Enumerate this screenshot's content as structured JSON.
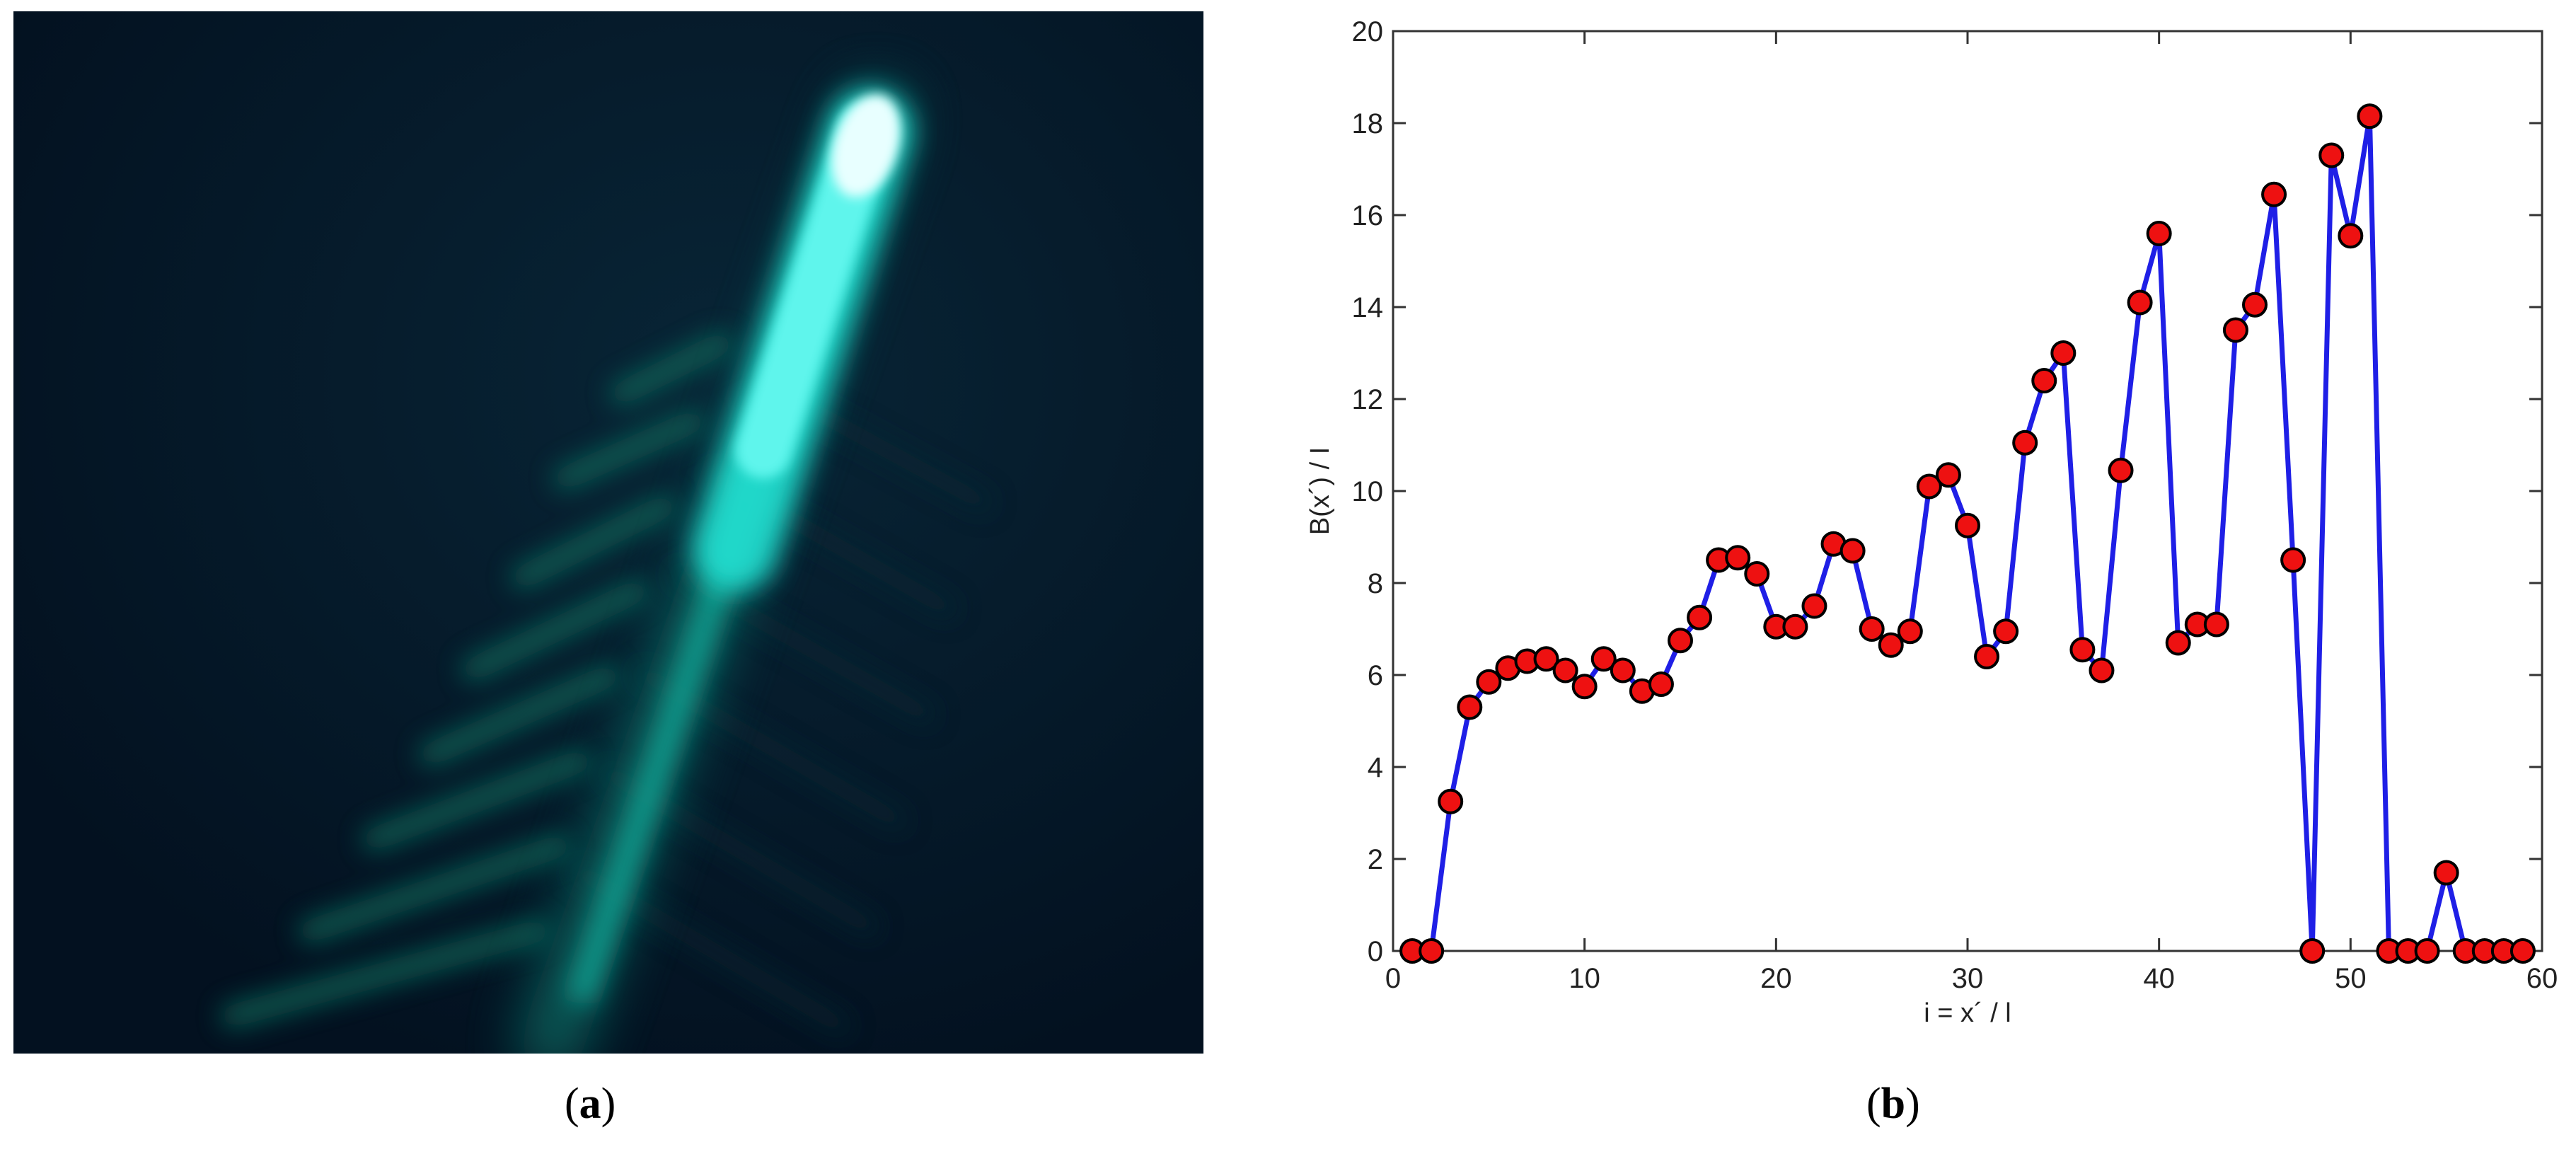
{
  "panels": {
    "a": {
      "label_open": "(",
      "label_letter": "a",
      "label_close": ")"
    },
    "b": {
      "label_open": "(",
      "label_letter": "b",
      "label_close": ")"
    }
  },
  "chart_data": {
    "type": "line",
    "title": "",
    "xlabel": "i = x´ / l",
    "ylabel": "B(x´) / I",
    "xlim": [
      0,
      60
    ],
    "ylim": [
      0,
      20
    ],
    "xticks": [
      0,
      10,
      20,
      30,
      40,
      50,
      60
    ],
    "yticks": [
      0,
      2,
      4,
      6,
      8,
      10,
      12,
      14,
      16,
      18,
      20
    ],
    "grid": false,
    "line_color": "#1f1fe6",
    "marker_face": "#ee1111",
    "marker_edge": "#000000",
    "series": [
      {
        "x": [
          1,
          2,
          3,
          4,
          5,
          6,
          7,
          8,
          9,
          10,
          11,
          12,
          13,
          14,
          15,
          16,
          17,
          18,
          19,
          20,
          21,
          22,
          23,
          24,
          25,
          26,
          27,
          28,
          29,
          30,
          31,
          32,
          33,
          34,
          35,
          36,
          37,
          38,
          39,
          40,
          41,
          42,
          43,
          44,
          45,
          46,
          47,
          48,
          49,
          50,
          51,
          52,
          53,
          54,
          55,
          56,
          57,
          58,
          59
        ],
        "y": [
          0,
          0,
          3.25,
          5.3,
          5.85,
          6.15,
          6.3,
          6.35,
          6.1,
          5.75,
          6.35,
          6.1,
          5.65,
          5.8,
          6.75,
          7.25,
          8.5,
          8.55,
          8.2,
          7.05,
          7.05,
          7.5,
          8.85,
          8.7,
          7.0,
          6.65,
          6.95,
          10.1,
          10.35,
          9.25,
          6.4,
          6.95,
          11.05,
          12.4,
          13.0,
          6.55,
          6.1,
          10.45,
          14.1,
          15.6,
          6.7,
          7.1,
          7.1,
          13.5,
          14.05,
          16.45,
          8.5,
          0,
          17.3,
          15.55,
          18.15,
          0,
          0,
          0,
          1.7,
          0,
          0,
          0,
          0
        ]
      }
    ]
  }
}
